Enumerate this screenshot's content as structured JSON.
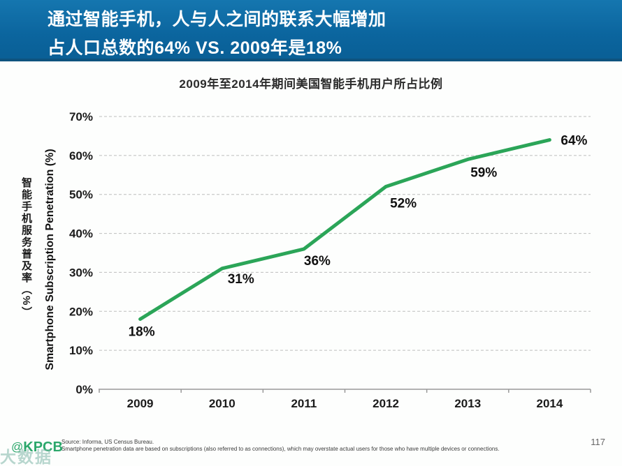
{
  "banner": {
    "line1": "通过智能手机，人与人之间的联系大幅增加",
    "line2": "占人口总数的64% VS. 2009年是18%",
    "bg_color": "#0B659E",
    "border_color": "#0E537E",
    "text_color": "#FFFFFF"
  },
  "chart_data": {
    "type": "line",
    "title": "2009年至2014年期间美国智能手机用户所占比例",
    "categories": [
      "2009",
      "2010",
      "2011",
      "2012",
      "2013",
      "2014"
    ],
    "values": [
      18,
      31,
      36,
      52,
      59,
      64
    ],
    "data_labels": [
      "18%",
      "31%",
      "36%",
      "52%",
      "59%",
      "64%"
    ],
    "ytick_labels": [
      "0%",
      "10%",
      "20%",
      "30%",
      "40%",
      "50%",
      "60%",
      "70%"
    ],
    "ytick_step": 10,
    "ylim": [
      0,
      70
    ],
    "xlabel": "",
    "ylabel_cn": "智能手机服务普及率（%）",
    "ylabel_en": "Smartphone Subscription Penetration (%)",
    "grid": "horizontal dashed",
    "legend": "none",
    "line_color": "#2BA558",
    "grid_color": "#BDBDBD",
    "axis_color": "#999999",
    "tick_label_color": "#1B1B1B",
    "data_label_color": "#111111"
  },
  "footer": {
    "source_line1": "Source: Informa, US Census Bureau.",
    "source_line2": "Smartphone penetration data are based on subscriptions (also referred to as connections), which may overstate actual users for those who have multiple devices or connections.",
    "page_number": "117",
    "logo_at": "@",
    "logo_text": "KPCB",
    "logo_color": "#2BA76B",
    "watermark_text": "大数据"
  }
}
